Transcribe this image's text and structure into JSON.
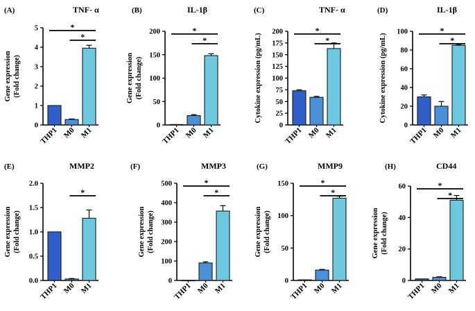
{
  "colors": {
    "THP1": "#2f5fc9",
    "M0": "#4a90d9",
    "M1": "#6cc8df",
    "axis": "#000000"
  },
  "chart_data": [
    {
      "label": "(A)",
      "type": "bar",
      "title": "TNF- α",
      "ylabel": [
        "Gene expression",
        "(Fold change)"
      ],
      "categories": [
        "THP1",
        "M0",
        "M1"
      ],
      "values": [
        1.0,
        0.28,
        3.95
      ],
      "errors": [
        0,
        0.03,
        0.15
      ],
      "ylim": [
        0,
        5
      ],
      "yticks": [
        "0",
        "1",
        "2",
        "3",
        "4",
        "5"
      ],
      "significance": [
        {
          "from": 0,
          "to": 2,
          "mark": "*"
        },
        {
          "from": 1,
          "to": 2,
          "mark": "*"
        }
      ]
    },
    {
      "label": "(B)",
      "type": "bar",
      "title": "IL-1β",
      "ylabel": [
        "Gene expression",
        "(Fold change)"
      ],
      "categories": [
        "THP1",
        "M0",
        "M1"
      ],
      "values": [
        1.0,
        20,
        148
      ],
      "errors": [
        0,
        2,
        4
      ],
      "ylim": [
        0,
        200
      ],
      "yticks": [
        "0",
        "50",
        "100",
        "150",
        "200"
      ],
      "significance": [
        {
          "from": 0,
          "to": 2,
          "mark": "*"
        },
        {
          "from": 1,
          "to": 2,
          "mark": "*"
        }
      ]
    },
    {
      "label": "(C)",
      "type": "bar",
      "title": "TNF- α",
      "ylabel": [
        "Cytokine expression (pg/mL)"
      ],
      "categories": [
        "THP1",
        "M0",
        "M1"
      ],
      "values": [
        73,
        59,
        163
      ],
      "errors": [
        2,
        2,
        12
      ],
      "ylim": [
        0,
        200
      ],
      "yticks": [
        "0",
        "25",
        "50",
        "75",
        "100",
        "125",
        "150",
        "175",
        "200"
      ],
      "significance": [
        {
          "from": 0,
          "to": 2,
          "mark": "*"
        },
        {
          "from": 1,
          "to": 2,
          "mark": "*"
        }
      ]
    },
    {
      "label": "(D)",
      "type": "bar",
      "title": "IL-1β",
      "ylabel": [
        "Cytokine expression (pg/mL)"
      ],
      "categories": [
        "THP1",
        "M0",
        "M1"
      ],
      "values": [
        30,
        20,
        85
      ],
      "errors": [
        2,
        5,
        1
      ],
      "ylim": [
        0,
        100
      ],
      "yticks": [
        "0",
        "20",
        "40",
        "60",
        "80",
        "100"
      ],
      "significance": [
        {
          "from": 0,
          "to": 2,
          "mark": "*"
        },
        {
          "from": 1,
          "to": 2,
          "mark": "*"
        }
      ]
    },
    {
      "label": "(E)",
      "type": "bar",
      "title": "MMP2",
      "ylabel": [
        "Gene expression",
        "(Fold change)"
      ],
      "categories": [
        "THP1",
        "M0",
        "M1"
      ],
      "values": [
        1.0,
        0.03,
        1.28
      ],
      "errors": [
        0,
        0.01,
        0.17
      ],
      "ylim": [
        0,
        2.0
      ],
      "yticks": [
        "0.0",
        "0.5",
        "1.0",
        "1.5",
        "2.0"
      ],
      "significance": [
        {
          "from": 1,
          "to": 2,
          "mark": "*"
        }
      ]
    },
    {
      "label": "(F)",
      "type": "bar",
      "title": "MMP3",
      "ylabel": [
        "Gene expression",
        "(Fold change)"
      ],
      "categories": [
        "THP1",
        "M0",
        "M1"
      ],
      "values": [
        1.0,
        90,
        357
      ],
      "errors": [
        0,
        6,
        28
      ],
      "ylim": [
        0,
        500
      ],
      "yticks": [
        "0",
        "100",
        "200",
        "300",
        "400",
        "500"
      ],
      "significance": [
        {
          "from": 0,
          "to": 2,
          "mark": "*"
        },
        {
          "from": 1,
          "to": 2,
          "mark": "*"
        }
      ]
    },
    {
      "label": "(G)",
      "type": "bar",
      "title": "MMP9",
      "ylabel": [
        "Gene expression",
        "(Fold change)"
      ],
      "categories": [
        "THP1",
        "M0",
        "M1"
      ],
      "values": [
        1.0,
        16,
        127
      ],
      "errors": [
        0,
        1,
        3
      ],
      "ylim": [
        0,
        150
      ],
      "yticks": [
        "0",
        "50",
        "100",
        "150"
      ],
      "significance": [
        {
          "from": 0,
          "to": 2,
          "mark": "*"
        },
        {
          "from": 1,
          "to": 2,
          "mark": "*"
        }
      ]
    },
    {
      "label": "(H)",
      "type": "bar",
      "title": "CD44",
      "ylabel": [
        "Gene expression",
        "(Fold change)"
      ],
      "categories": [
        "THP1",
        "M0",
        "M1"
      ],
      "values": [
        1.0,
        2,
        51
      ],
      "errors": [
        0,
        0.3,
        3
      ],
      "ylim": [
        0,
        60
      ],
      "yticks": [
        "0",
        "20",
        "40",
        "60"
      ],
      "significance": [
        {
          "from": 0,
          "to": 2,
          "mark": "*"
        },
        {
          "from": 1,
          "to": 2,
          "mark": "*"
        }
      ]
    }
  ]
}
